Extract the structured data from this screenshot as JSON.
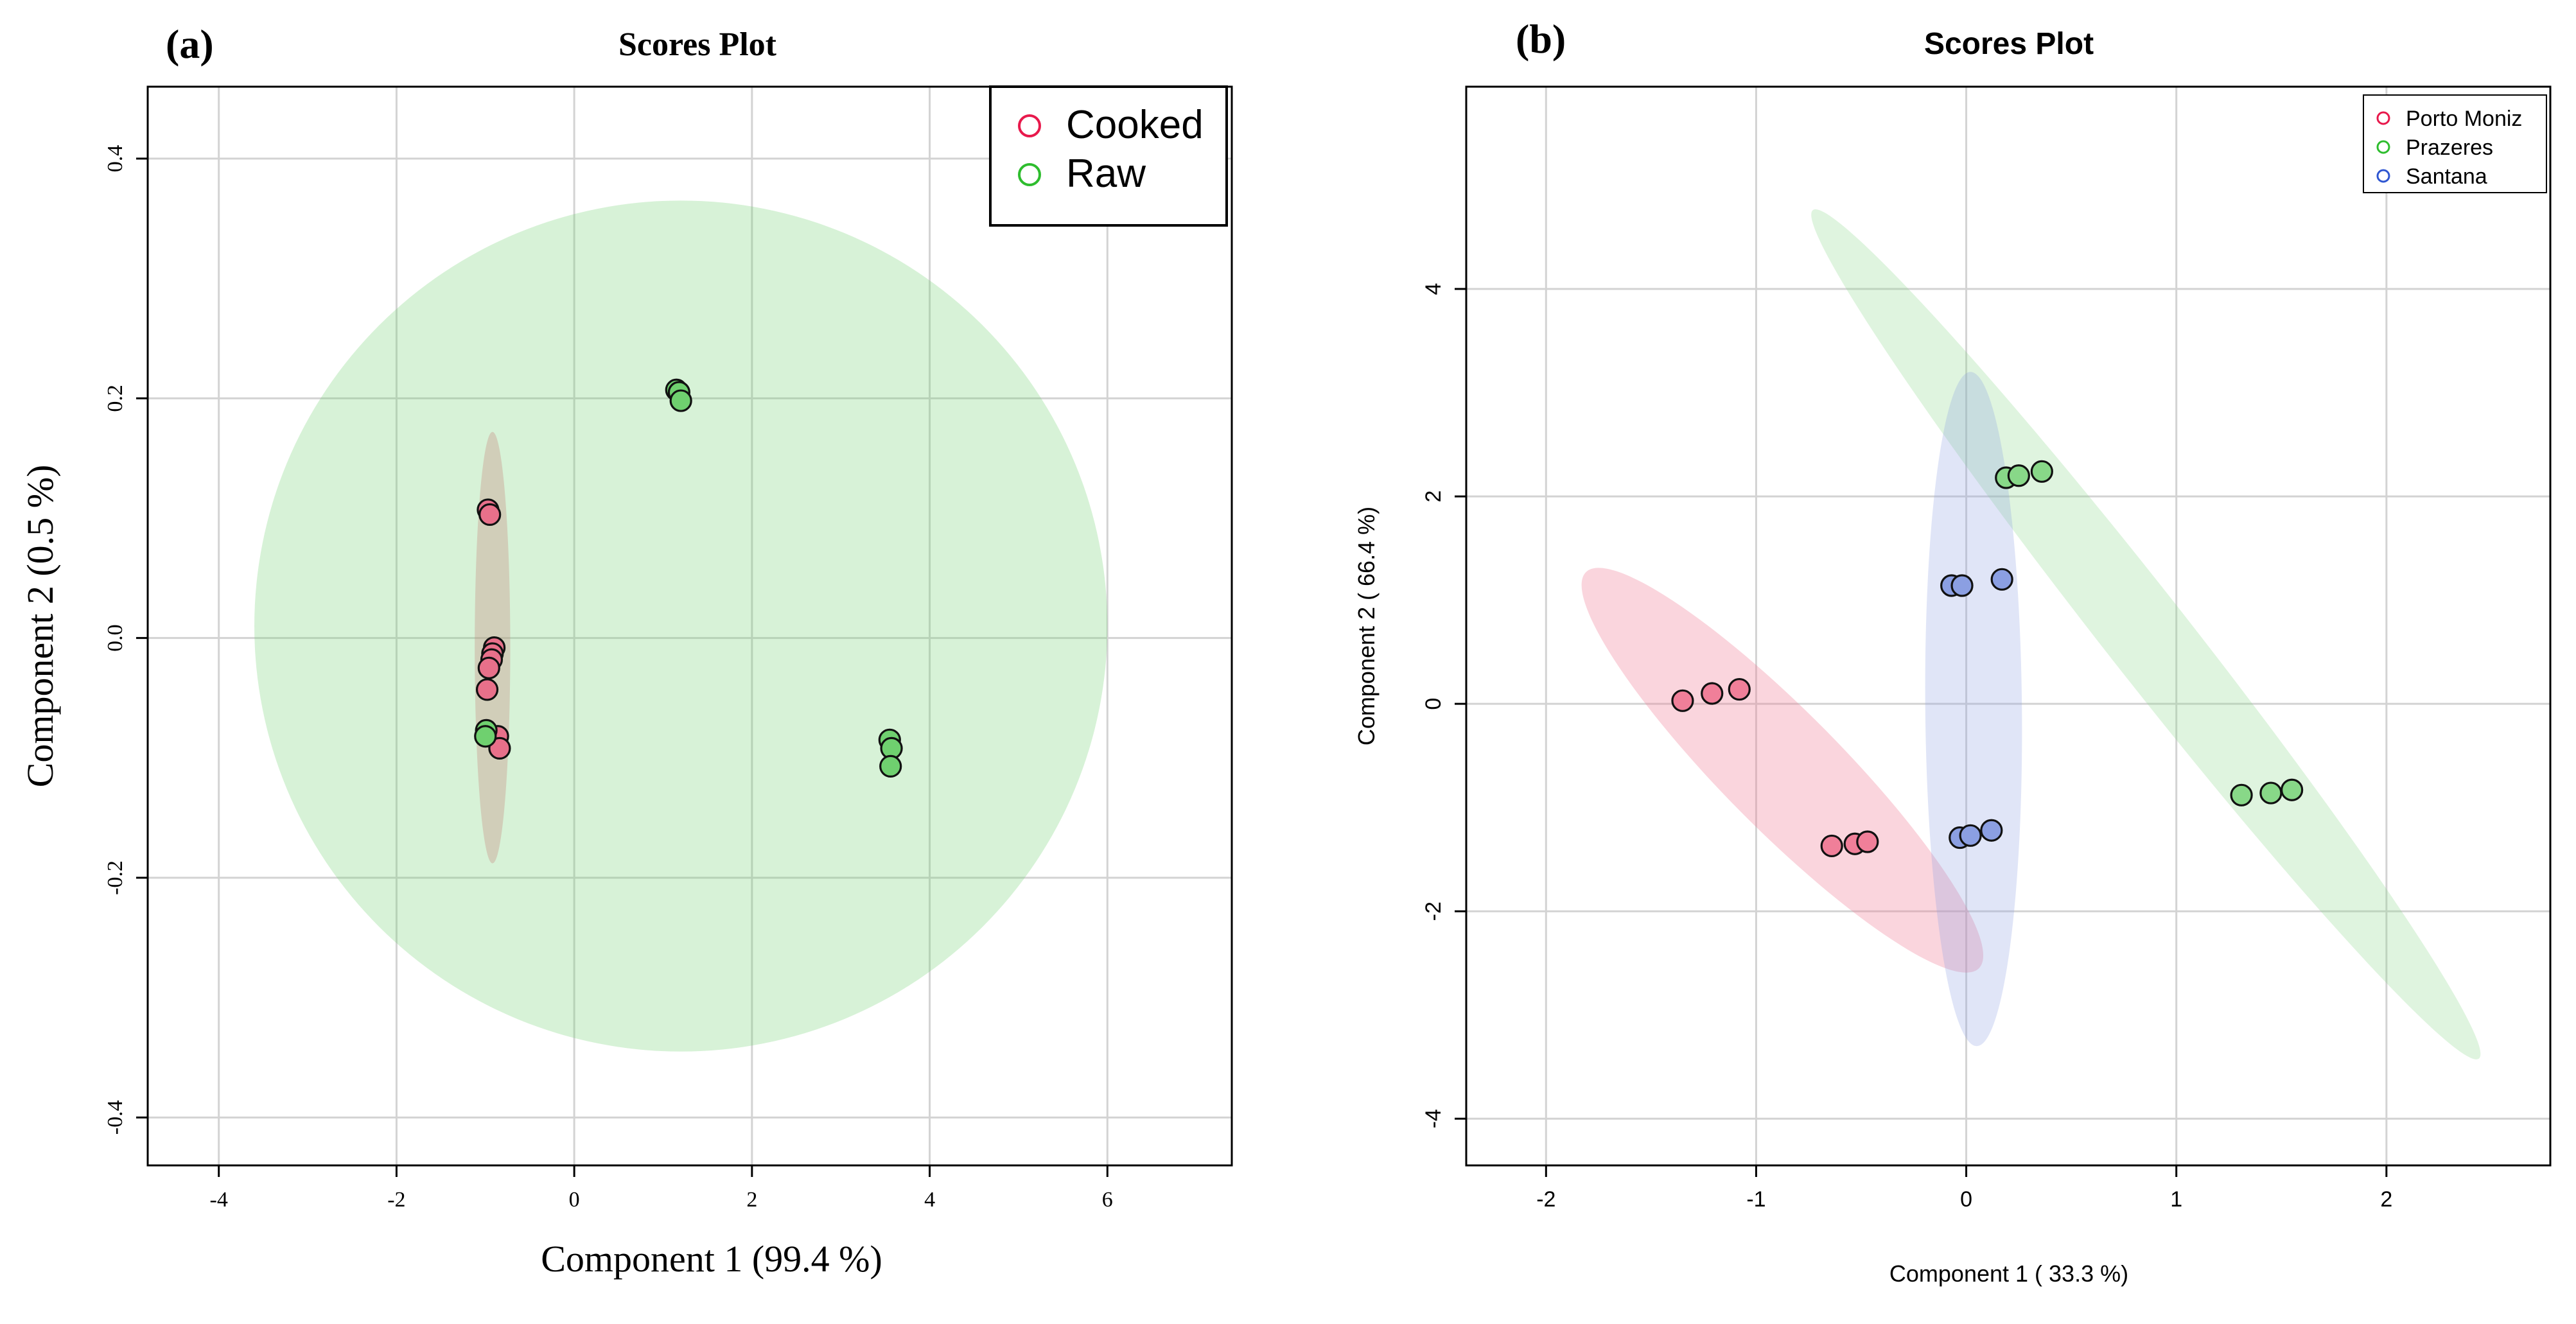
{
  "chart_data": [
    {
      "type": "scatter",
      "panel_label": "(a)",
      "title": "Scores Plot",
      "xlabel": "Component 1 (99.4 %)",
      "ylabel": "Component 2 (0.5 %)",
      "xlim": [
        -4.8,
        7.4
      ],
      "ylim": [
        -0.44,
        0.46
      ],
      "xticks": [
        -4,
        -2,
        0,
        2,
        4,
        6
      ],
      "yticks": [
        -0.4,
        -0.2,
        0.0,
        0.2,
        0.4
      ],
      "ytick_labels": [
        "-0.4",
        "-0.2",
        "0.0",
        "0.2",
        "0.4"
      ],
      "grid": true,
      "legend_position": "top-right",
      "series": [
        {
          "name": "Cooked",
          "color": "#e8194c",
          "fill": "#e8708a",
          "points": [
            {
              "x": -0.97,
              "y": 0.107
            },
            {
              "x": -0.95,
              "y": 0.103
            },
            {
              "x": -0.9,
              "y": -0.008
            },
            {
              "x": -0.92,
              "y": -0.013
            },
            {
              "x": -0.93,
              "y": -0.018
            },
            {
              "x": -0.96,
              "y": -0.025
            },
            {
              "x": -0.98,
              "y": -0.043
            },
            {
              "x": -0.86,
              "y": -0.082
            },
            {
              "x": -0.84,
              "y": -0.092
            }
          ],
          "ellipse": {
            "cx": -0.92,
            "cy": -0.008,
            "rx": 0.2,
            "ry": 0.18,
            "angle_deg": 0
          }
        },
        {
          "name": "Raw",
          "color": "#2ebd2e",
          "fill": "#6fd06f",
          "points": [
            {
              "x": 1.15,
              "y": 0.207
            },
            {
              "x": 1.18,
              "y": 0.205
            },
            {
              "x": 1.2,
              "y": 0.198
            },
            {
              "x": -0.99,
              "y": -0.077
            },
            {
              "x": -1.0,
              "y": -0.082
            },
            {
              "x": 3.55,
              "y": -0.085
            },
            {
              "x": 3.57,
              "y": -0.092
            },
            {
              "x": 3.56,
              "y": -0.107
            }
          ],
          "ellipse": {
            "cx": 1.2,
            "cy": 0.01,
            "rx": 4.8,
            "ry": 0.355,
            "angle_deg": 0
          }
        }
      ]
    },
    {
      "type": "scatter",
      "panel_label": "(b)",
      "title": "Scores Plot",
      "xlabel": "Component 1 ( 33.3 %)",
      "ylabel": "Component 2 ( 66.4 %)",
      "xlim": [
        -2.38,
        2.78
      ],
      "ylim": [
        -4.45,
        5.95
      ],
      "xticks": [
        -2,
        -1,
        0,
        1,
        2
      ],
      "yticks": [
        -4,
        -2,
        0,
        2,
        4
      ],
      "grid": true,
      "legend_position": "top-right",
      "series": [
        {
          "name": "Porto Moniz",
          "color": "#e8194c",
          "fill": "#f07f99",
          "points": [
            {
              "x": -1.35,
              "y": 0.03
            },
            {
              "x": -1.21,
              "y": 0.1
            },
            {
              "x": -1.08,
              "y": 0.14
            },
            {
              "x": -0.64,
              "y": -1.37
            },
            {
              "x": -0.53,
              "y": -1.35
            },
            {
              "x": -0.47,
              "y": -1.33
            }
          ],
          "ellipse_endpoints": [
            [
              -1.81,
              1.27
            ],
            [
              0.06,
              -2.55
            ]
          ],
          "ellipse_minor": 0.28
        },
        {
          "name": "Prazeres",
          "color": "#2ebd2e",
          "fill": "#88d888",
          "points": [
            {
              "x": 0.19,
              "y": 2.18
            },
            {
              "x": 0.25,
              "y": 2.2
            },
            {
              "x": 0.36,
              "y": 2.24
            },
            {
              "x": 1.31,
              "y": -0.88
            },
            {
              "x": 1.45,
              "y": -0.86
            },
            {
              "x": 1.55,
              "y": -0.83
            }
          ],
          "ellipse_endpoints": [
            [
              -0.73,
              4.76
            ],
            [
              2.44,
              -3.42
            ]
          ],
          "ellipse_minor": 0.2
        },
        {
          "name": "Santana",
          "color": "#2f56d1",
          "fill": "#8b9fe2",
          "points": [
            {
              "x": -0.07,
              "y": 1.14
            },
            {
              "x": -0.02,
              "y": 1.14
            },
            {
              "x": 0.17,
              "y": 1.2
            },
            {
              "x": -0.03,
              "y": -1.29
            },
            {
              "x": 0.02,
              "y": -1.27
            },
            {
              "x": 0.12,
              "y": -1.22
            }
          ],
          "ellipse_endpoints": [
            [
              0.02,
              3.2
            ],
            [
              0.05,
              -3.3
            ]
          ],
          "ellipse_minor": 0.23
        }
      ]
    }
  ]
}
